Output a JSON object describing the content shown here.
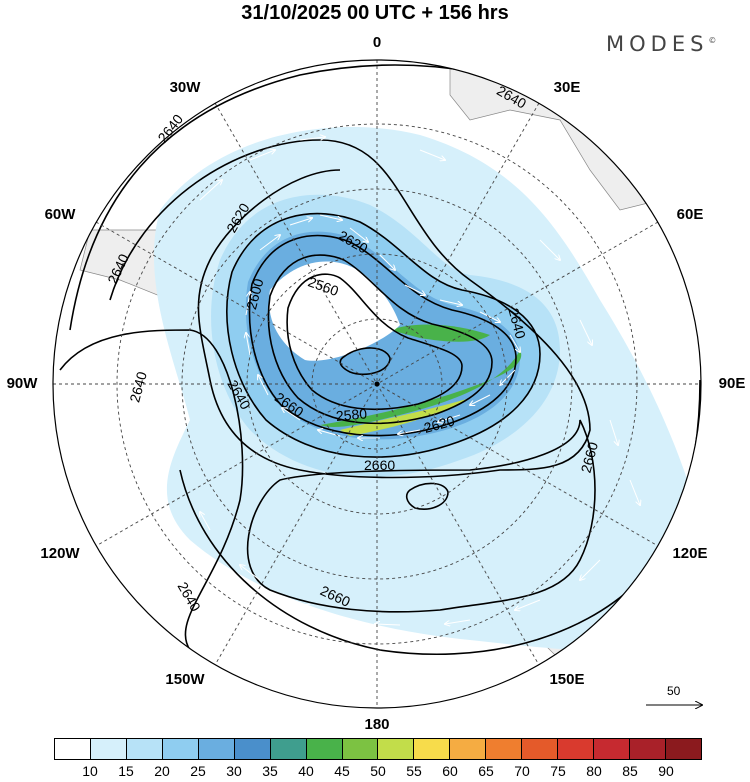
{
  "title": "31/10/2025  00 UTC  + 156 hrs",
  "brand": "MODES",
  "brand_mark": "©",
  "longitude_labels": {
    "top": "0",
    "top_right": "30E",
    "right_upper": "60E",
    "right": "90E",
    "right_lower": "120E",
    "bottom_right": "150E",
    "bottom": "180",
    "bottom_left": "150W",
    "left_lower": "120W",
    "left": "90W",
    "left_upper": "60W",
    "top_left": "30W"
  },
  "contour_labels": [
    "2640",
    "2640",
    "2640",
    "2640",
    "2640",
    "2640",
    "2640",
    "2620",
    "2620",
    "2600",
    "2560",
    "2580",
    "2620",
    "2660",
    "2660",
    "2660",
    "2660"
  ],
  "reference_vector": {
    "label": "50"
  },
  "colorbar": {
    "ticks": [
      "10",
      "15",
      "20",
      "25",
      "30",
      "35",
      "40",
      "45",
      "50",
      "55",
      "60",
      "65",
      "70",
      "75",
      "80",
      "85",
      "90"
    ],
    "colors": [
      "#ffffff",
      "#d6f0fb",
      "#b7e2f7",
      "#8fcdf0",
      "#6aaee0",
      "#4a8fcb",
      "#3f9e8e",
      "#49b24a",
      "#7cc242",
      "#c2dd4a",
      "#f7dc4b",
      "#f5ac42",
      "#ef7e2f",
      "#e45a2a",
      "#d93a2e",
      "#c62a30",
      "#a92129",
      "#8b1a1e"
    ]
  },
  "colors": {
    "land": "#eeeeee",
    "contour": "#000000",
    "grid": "#444444"
  }
}
